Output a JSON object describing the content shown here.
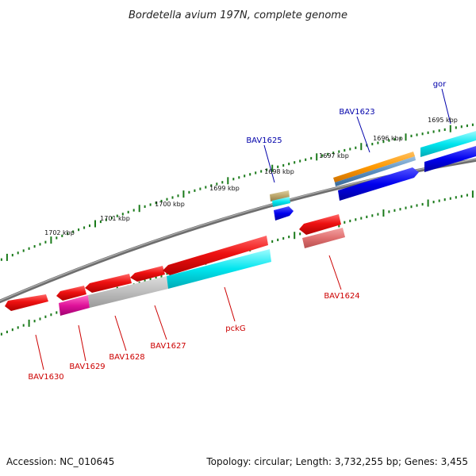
{
  "title": "Bordetella avium 197N, complete genome",
  "footer": {
    "accession": "Accession: NC_010645",
    "topology": "Topology: circular; Length: 3,732,255 bp; Genes: 3,455"
  },
  "colors": {
    "backbone": "#808080",
    "tick": "#1a7a1a",
    "label_red": "#cc0000",
    "label_blue": "#0000aa"
  },
  "kbp_labels": [
    {
      "text": "1695 kbp"
    },
    {
      "text": "1696 kbp"
    },
    {
      "text": "1697 kbp"
    },
    {
      "text": "1698 kbp"
    },
    {
      "text": "1699 kbp"
    },
    {
      "text": "1700 kbp"
    },
    {
      "text": "1701 kbp"
    },
    {
      "text": "1702 kbp"
    }
  ],
  "gene_labels": [
    {
      "text": "gor",
      "color": "blue"
    },
    {
      "text": "BAV1623",
      "color": "blue"
    },
    {
      "text": "BAV1625",
      "color": "blue"
    },
    {
      "text": "BAV1624",
      "color": "red"
    },
    {
      "text": "pckG",
      "color": "red"
    },
    {
      "text": "BAV1627",
      "color": "red"
    },
    {
      "text": "BAV1628",
      "color": "red"
    },
    {
      "text": "BAV1629",
      "color": "red"
    },
    {
      "text": "BAV1630",
      "color": "red"
    }
  ],
  "feature_colors": {
    "cds_red": "#ee1111",
    "cds_red_light": "#e87070",
    "cds_magenta": "#e0129a",
    "cds_grey": "#b8b8b8",
    "cds_cyan": "#00e5ee",
    "cds_blue": "#0000ee",
    "cds_orange": "#ff9900",
    "cds_steel": "#5b8fc0",
    "cds_khaki": "#bba66a"
  }
}
